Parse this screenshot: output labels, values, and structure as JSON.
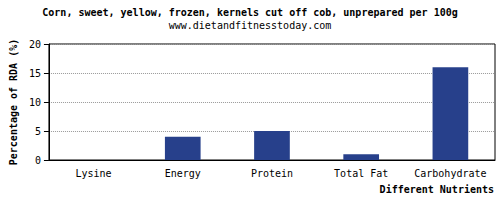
{
  "chart_data": {
    "type": "bar",
    "title": "Corn, sweet, yellow, frozen, kernels cut off cob, unprepared per 100g",
    "subtitle": "www.dietandfitnesstoday.com",
    "x_label": "Different Nutrients",
    "y_label": "Percentage of RDA (%)",
    "categories": [
      "Lysine",
      "Energy",
      "Protein",
      "Total Fat",
      "Carbohydrate"
    ],
    "values": [
      0,
      4,
      5,
      1,
      16
    ],
    "color": "#27408b",
    "ylim": [
      0,
      20
    ],
    "yticks": [
      0,
      5,
      10,
      15,
      20
    ],
    "grid": true
  }
}
